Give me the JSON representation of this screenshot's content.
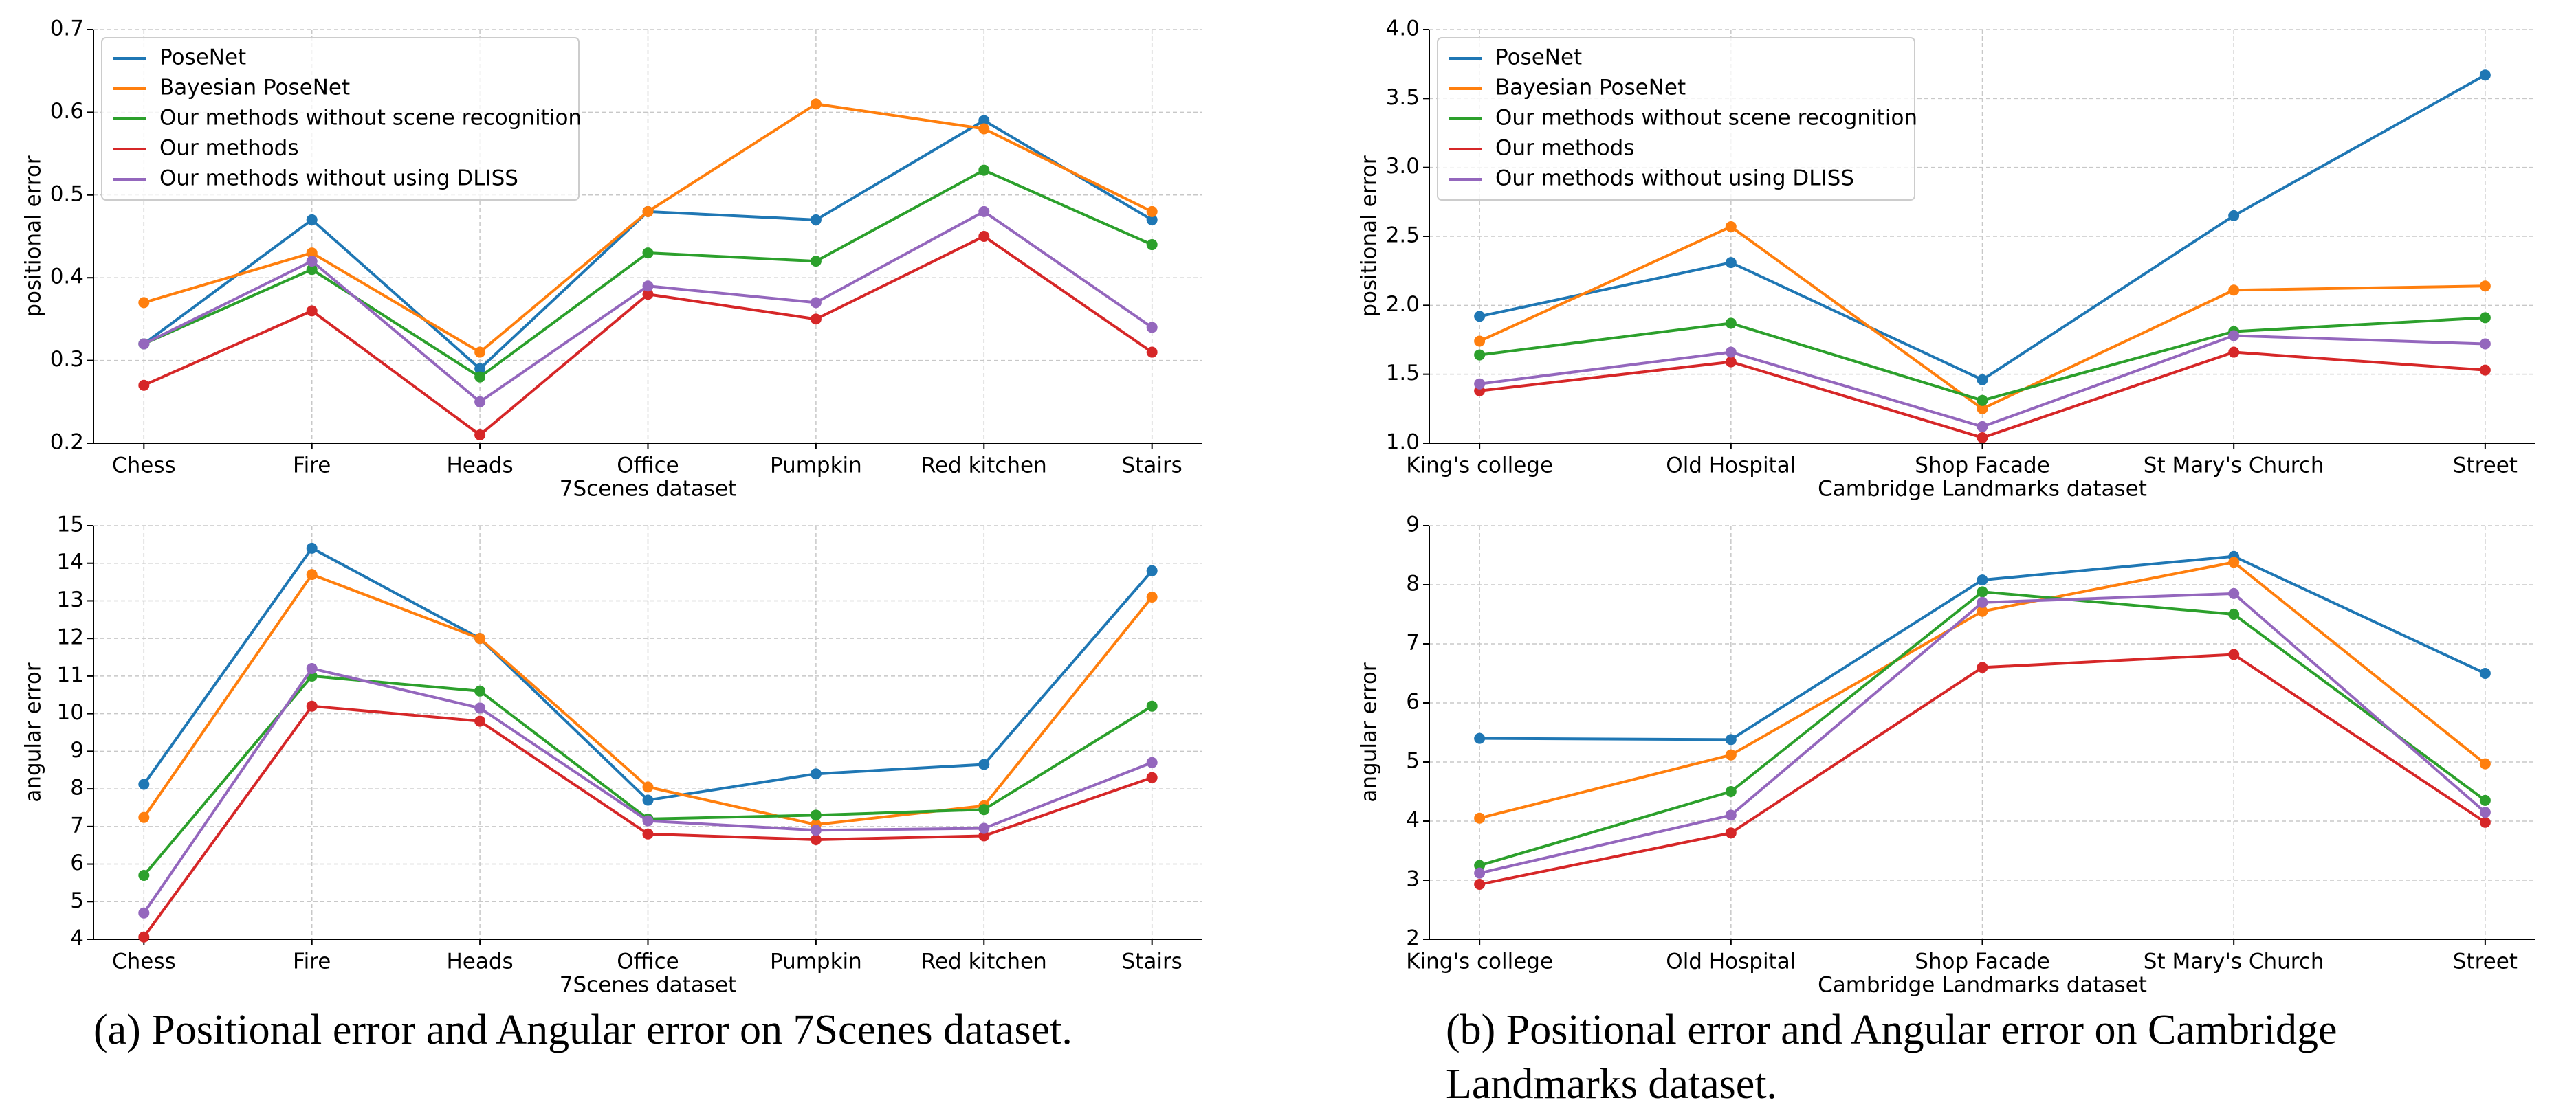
{
  "chart_data": [
    {
      "type": "line",
      "ylabel": "positional error",
      "xlabel": "7Scenes dataset",
      "categories": [
        "Chess",
        "Fire",
        "Heads",
        "Office",
        "Pumpkin",
        "Red kitchen",
        "Stairs"
      ],
      "ylim": [
        0.2,
        0.7
      ],
      "yticks": [
        0.2,
        0.3,
        0.4,
        0.5,
        0.6,
        0.7
      ],
      "grid": true,
      "legend": "upper left",
      "series": [
        {
          "name": "PoseNet",
          "color": "#1f77b4",
          "values": [
            0.32,
            0.47,
            0.29,
            0.48,
            0.47,
            0.59,
            0.47
          ]
        },
        {
          "name": "Bayesian PoseNet",
          "color": "#ff7f0e",
          "values": [
            0.37,
            0.43,
            0.31,
            0.48,
            0.61,
            0.58,
            0.48
          ]
        },
        {
          "name": "Our methods without scene recognition",
          "color": "#2ca02c",
          "values": [
            0.32,
            0.41,
            0.28,
            0.43,
            0.42,
            0.53,
            0.44
          ]
        },
        {
          "name": "Our methods",
          "color": "#d62728",
          "values": [
            0.27,
            0.36,
            0.21,
            0.38,
            0.35,
            0.45,
            0.31
          ]
        },
        {
          "name": "Our methods without using DLISS",
          "color": "#9467bd",
          "values": [
            0.32,
            0.42,
            0.25,
            0.39,
            0.37,
            0.48,
            0.34
          ]
        }
      ]
    },
    {
      "type": "line",
      "ylabel": "positional error",
      "xlabel": "Cambridge Landmarks dataset",
      "categories": [
        "King's college",
        "Old Hospital",
        "Shop Facade",
        "St Mary's Church",
        "Street"
      ],
      "ylim": [
        1,
        4
      ],
      "yticks": [
        {
          "value": 1,
          "label": "1.0"
        },
        1.5,
        {
          "value": 2,
          "label": "2.0"
        },
        2.5,
        {
          "value": 3,
          "label": "3.0"
        },
        3.5,
        {
          "value": 4,
          "label": "4.0"
        }
      ],
      "grid": true,
      "legend": "upper left",
      "series": [
        {
          "name": "PoseNet",
          "color": "#1f77b4",
          "values": [
            1.92,
            2.31,
            1.46,
            2.65,
            3.67
          ]
        },
        {
          "name": "Bayesian PoseNet",
          "color": "#ff7f0e",
          "values": [
            1.74,
            2.57,
            1.25,
            2.11,
            2.14
          ]
        },
        {
          "name": "Our methods without scene recognition",
          "color": "#2ca02c",
          "values": [
            1.64,
            1.87,
            1.31,
            1.81,
            1.91
          ]
        },
        {
          "name": "Our methods",
          "color": "#d62728",
          "values": [
            1.38,
            1.59,
            1.04,
            1.66,
            1.53
          ]
        },
        {
          "name": "Our methods without using DLISS",
          "color": "#9467bd",
          "values": [
            1.43,
            1.66,
            1.12,
            1.78,
            1.72
          ]
        }
      ]
    },
    {
      "type": "line",
      "ylabel": "angular error",
      "xlabel": "7Scenes dataset",
      "categories": [
        "Chess",
        "Fire",
        "Heads",
        "Office",
        "Pumpkin",
        "Red kitchen",
        "Stairs"
      ],
      "ylim": [
        4,
        15
      ],
      "yticks": [
        4,
        5,
        6,
        7,
        8,
        9,
        10,
        11,
        12,
        13,
        14,
        15
      ],
      "grid": true,
      "series": [
        {
          "color": "#1f77b4",
          "values": [
            8.12,
            14.4,
            12.0,
            7.7,
            8.4,
            8.65,
            13.8
          ]
        },
        {
          "color": "#ff7f0e",
          "values": [
            7.24,
            13.7,
            12.0,
            8.05,
            7.05,
            7.55,
            13.1
          ]
        },
        {
          "color": "#2ca02c",
          "values": [
            5.7,
            11.0,
            10.6,
            7.2,
            7.3,
            7.45,
            10.2
          ]
        },
        {
          "color": "#d62728",
          "values": [
            4.06,
            10.2,
            9.8,
            6.8,
            6.65,
            6.75,
            8.3
          ]
        },
        {
          "color": "#9467bd",
          "values": [
            4.7,
            11.2,
            10.15,
            7.15,
            6.9,
            6.95,
            8.7
          ]
        }
      ]
    },
    {
      "type": "line",
      "ylabel": "angular error",
      "xlabel": "Cambridge Landmarks dataset",
      "categories": [
        "King's college",
        "Old Hospital",
        "Shop Facade",
        "St Mary's Church",
        "Street"
      ],
      "ylim": [
        2,
        9
      ],
      "yticks": [
        2,
        3,
        4,
        5,
        6,
        7,
        8,
        9
      ],
      "grid": true,
      "series": [
        {
          "color": "#1f77b4",
          "values": [
            5.4,
            5.38,
            8.08,
            8.48,
            6.5
          ]
        },
        {
          "color": "#ff7f0e",
          "values": [
            4.05,
            5.12,
            7.55,
            8.38,
            4.97
          ]
        },
        {
          "color": "#2ca02c",
          "values": [
            3.25,
            4.5,
            7.88,
            7.5,
            4.35
          ]
        },
        {
          "color": "#d62728",
          "values": [
            2.93,
            3.8,
            6.6,
            6.82,
            3.98
          ]
        },
        {
          "color": "#9467bd",
          "values": [
            3.12,
            4.1,
            7.7,
            7.85,
            4.15
          ]
        }
      ]
    }
  ],
  "captions": [
    "(a) Positional error and Angular error on 7Scenes dataset.",
    "(b) Positional error and Angular error on Cambridge Landmarks dataset."
  ]
}
